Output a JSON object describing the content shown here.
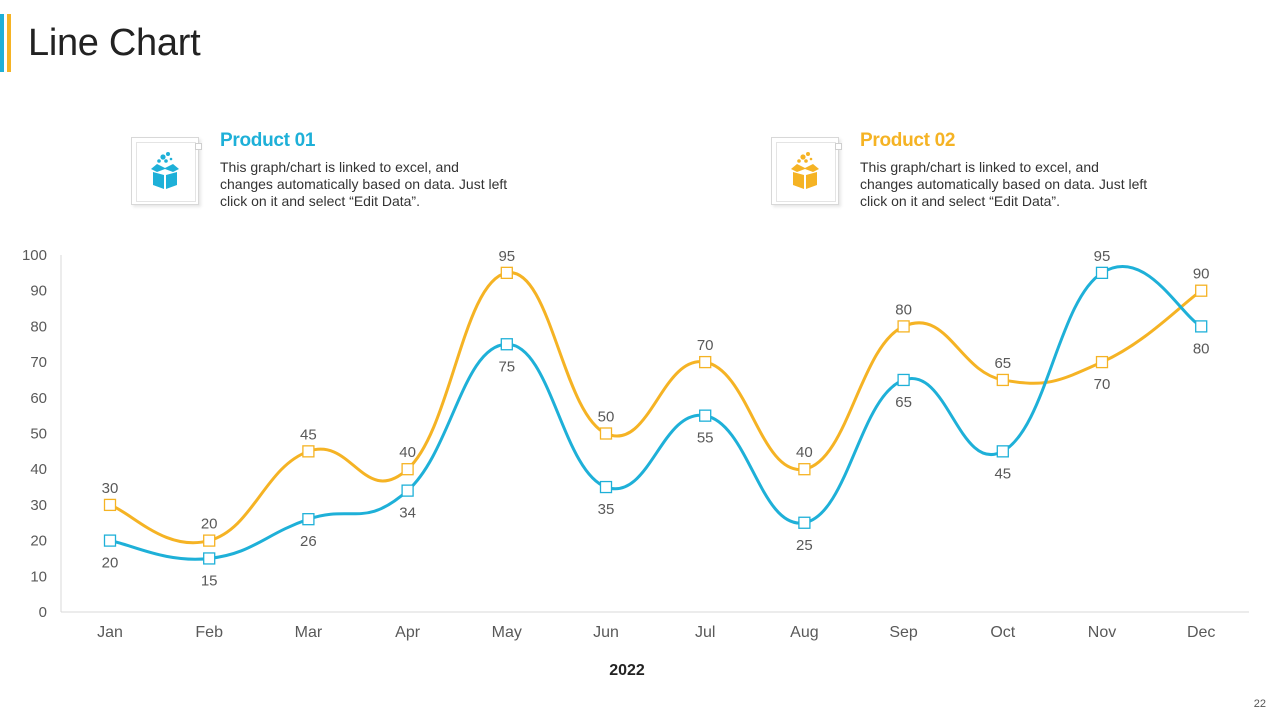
{
  "page": {
    "title": "Line Chart",
    "number": "22"
  },
  "legend_cards": [
    {
      "title": "Product 01",
      "description": "This graph/chart is linked to excel, and changes automatically based on data. Just left click on it and select “Edit Data”.",
      "color": "#1eb0d8",
      "icon": "gift-box-icon"
    },
    {
      "title": "Product 02",
      "description": "This graph/chart is linked to excel, and changes automatically based on data. Just left click on it and select “Edit Data”.",
      "color": "#f5b324",
      "icon": "gift-box-icon"
    }
  ],
  "chart_data": {
    "type": "line",
    "title": "",
    "xlabel": "2022",
    "ylabel": "",
    "categories": [
      "Jan",
      "Feb",
      "Mar",
      "Apr",
      "May",
      "Jun",
      "Jul",
      "Aug",
      "Sep",
      "Oct",
      "Nov",
      "Dec"
    ],
    "ylim": [
      0,
      100
    ],
    "yticks": [
      0,
      10,
      20,
      30,
      40,
      50,
      60,
      70,
      80,
      90,
      100
    ],
    "grid": false,
    "smooth": true,
    "series": [
      {
        "name": "Product 01",
        "color": "#1eb0d8",
        "values": [
          20,
          15,
          26,
          34,
          75,
          35,
          55,
          25,
          65,
          45,
          95,
          80
        ]
      },
      {
        "name": "Product 02",
        "color": "#f5b324",
        "values": [
          30,
          20,
          45,
          40,
          95,
          50,
          70,
          40,
          80,
          65,
          70,
          90
        ]
      }
    ]
  }
}
